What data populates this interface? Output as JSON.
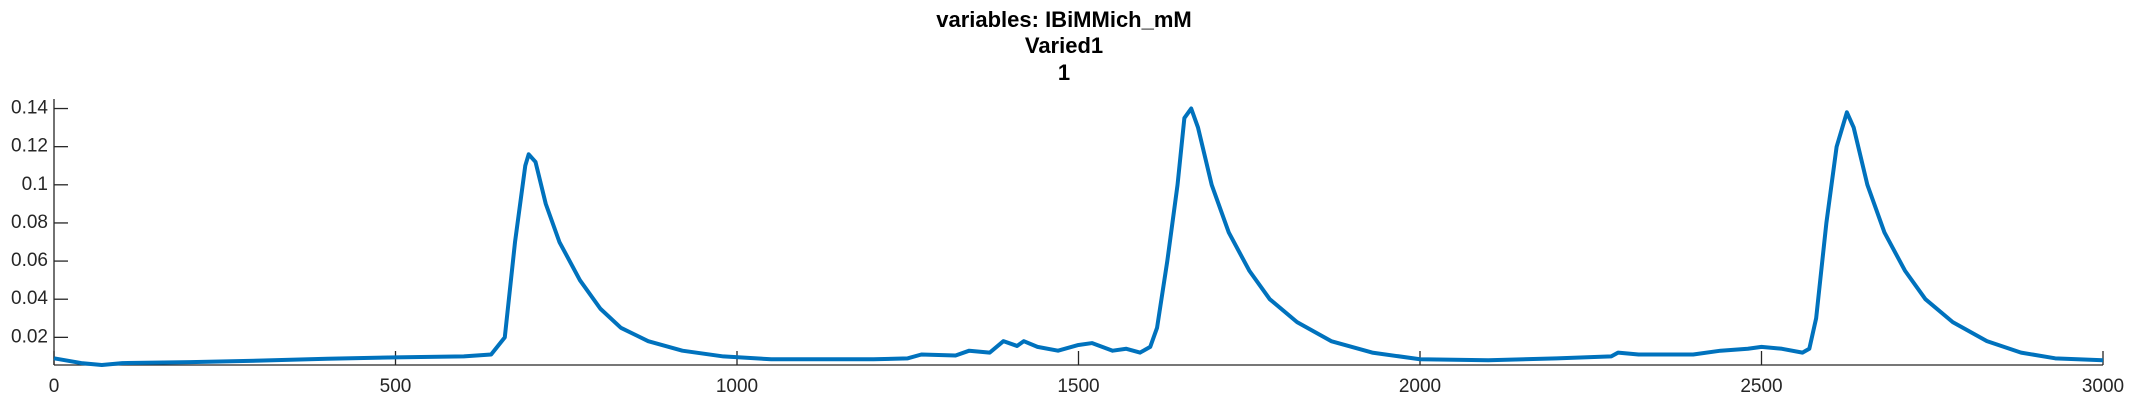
{
  "chart_data": {
    "type": "line",
    "title": "variables: IBiMMich_mM",
    "subtitle": "Varied1",
    "subtitle2": "1",
    "x": [
      0,
      40,
      70,
      100,
      200,
      300,
      400,
      500,
      600,
      640,
      660,
      675,
      690,
      695,
      705,
      720,
      740,
      770,
      800,
      830,
      870,
      920,
      980,
      1050,
      1200,
      1250,
      1270,
      1320,
      1340,
      1370,
      1390,
      1410,
      1420,
      1440,
      1470,
      1500,
      1520,
      1550,
      1570,
      1590,
      1605,
      1615,
      1630,
      1645,
      1655,
      1665,
      1675,
      1695,
      1720,
      1750,
      1780,
      1820,
      1870,
      1930,
      2000,
      2100,
      2200,
      2280,
      2290,
      2320,
      2400,
      2440,
      2480,
      2500,
      2530,
      2560,
      2570,
      2580,
      2595,
      2610,
      2625,
      2635,
      2655,
      2680,
      2710,
      2740,
      2780,
      2830,
      2880,
      2930,
      3000
    ],
    "series": [
      {
        "name": "IBiMMich_mM",
        "color": "#0072bd",
        "values": [
          0.009,
          0.0065,
          0.0055,
          0.0065,
          0.007,
          0.0078,
          0.0088,
          0.0095,
          0.01,
          0.011,
          0.02,
          0.07,
          0.11,
          0.116,
          0.112,
          0.09,
          0.07,
          0.05,
          0.035,
          0.025,
          0.018,
          0.013,
          0.01,
          0.0085,
          0.0085,
          0.009,
          0.011,
          0.0105,
          0.013,
          0.012,
          0.018,
          0.0155,
          0.018,
          0.015,
          0.013,
          0.016,
          0.017,
          0.013,
          0.014,
          0.012,
          0.015,
          0.025,
          0.06,
          0.1,
          0.135,
          0.14,
          0.13,
          0.1,
          0.075,
          0.055,
          0.04,
          0.028,
          0.018,
          0.012,
          0.0085,
          0.008,
          0.009,
          0.01,
          0.012,
          0.011,
          0.011,
          0.013,
          0.014,
          0.015,
          0.014,
          0.012,
          0.014,
          0.03,
          0.08,
          0.12,
          0.138,
          0.13,
          0.1,
          0.075,
          0.055,
          0.04,
          0.028,
          0.018,
          0.012,
          0.009,
          0.008
        ]
      }
    ],
    "xlim": [
      0,
      3000
    ],
    "xticks": [
      0,
      500,
      1000,
      1500,
      2000,
      2500,
      3000
    ],
    "ylim": [
      0.0055,
      0.145
    ],
    "yticks": [
      0.02,
      0.04,
      0.06,
      0.08,
      0.1,
      0.12,
      0.14
    ]
  }
}
